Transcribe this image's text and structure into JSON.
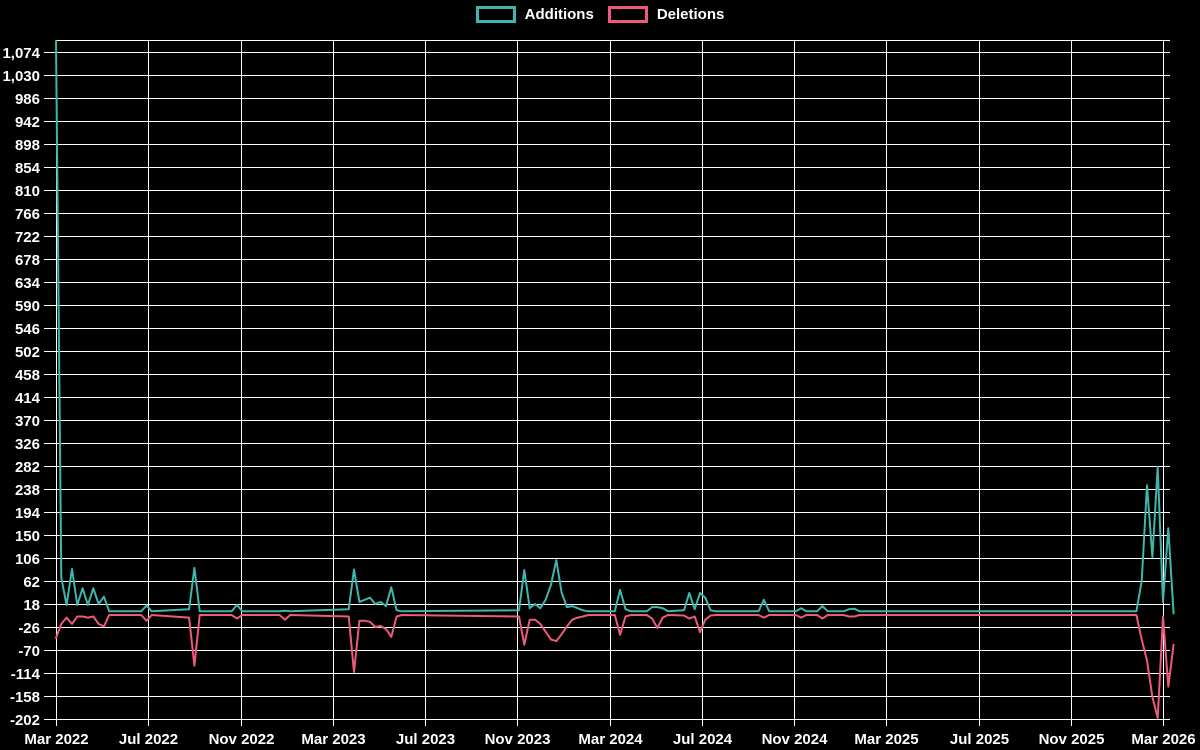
{
  "legend": {
    "items": [
      {
        "label": "Additions",
        "color": "#40b5ac"
      },
      {
        "label": "Deletions",
        "color": "#ee5a79"
      }
    ]
  },
  "chart_data": {
    "type": "line",
    "title": "",
    "xlabel": "",
    "ylabel": "",
    "legend_position": "top-center",
    "plot_background": "#000000",
    "grid": true,
    "grid_color": "#ffffff",
    "x_tick_labels": [
      "Mar 2022",
      "Jul 2022",
      "Nov 2022",
      "Mar 2023",
      "Jul 2023",
      "Nov 2023",
      "Mar 2024",
      "Jul 2024",
      "Nov 2024",
      "Mar 2025",
      "Jul 2025",
      "Nov 2025",
      "Mar 2026"
    ],
    "y_tick_values": [
      1074,
      1030,
      986,
      942,
      898,
      854,
      810,
      766,
      722,
      678,
      634,
      590,
      546,
      502,
      458,
      414,
      370,
      326,
      282,
      238,
      194,
      150,
      106,
      62,
      18,
      -26,
      -70,
      -114,
      -158,
      -202
    ],
    "y_tick_labels": [
      "1,074",
      "1,030",
      "986",
      "942",
      "898",
      "854",
      "810",
      "766",
      "722",
      "678",
      "634",
      "590",
      "546",
      "502",
      "458",
      "414",
      "370",
      "326",
      "282",
      "238",
      "194",
      "150",
      "106",
      "62",
      "18",
      "-26",
      "-70",
      "-114",
      "-158",
      "-202"
    ],
    "ylim": [
      -202,
      1097
    ],
    "xlim_weeks": [
      0,
      208
    ],
    "x_unit": "weeks since Mar 2022",
    "series": [
      {
        "name": "Additions",
        "color": "#40b5ac",
        "points": [
          [
            0,
            1095
          ],
          [
            1,
            68
          ],
          [
            2,
            16
          ],
          [
            3,
            85
          ],
          [
            4,
            16
          ],
          [
            5,
            48
          ],
          [
            6,
            16
          ],
          [
            7,
            48
          ],
          [
            8,
            18
          ],
          [
            9,
            32
          ],
          [
            10,
            4
          ],
          [
            16,
            4
          ],
          [
            17,
            15
          ],
          [
            18,
            4
          ],
          [
            25,
            8
          ],
          [
            26,
            87
          ],
          [
            27,
            4
          ],
          [
            33,
            4
          ],
          [
            34,
            16
          ],
          [
            35,
            4
          ],
          [
            42,
            4
          ],
          [
            43,
            5
          ],
          [
            44,
            4
          ],
          [
            55,
            8
          ],
          [
            56,
            84
          ],
          [
            57,
            22
          ],
          [
            58,
            26
          ],
          [
            59,
            30
          ],
          [
            60,
            18
          ],
          [
            61,
            22
          ],
          [
            62,
            14
          ],
          [
            63,
            50
          ],
          [
            64,
            6
          ],
          [
            65,
            4
          ],
          [
            87,
            6
          ],
          [
            88,
            83
          ],
          [
            89,
            10
          ],
          [
            90,
            18
          ],
          [
            91,
            10
          ],
          [
            92,
            26
          ],
          [
            93,
            55
          ],
          [
            94,
            102
          ],
          [
            95,
            40
          ],
          [
            96,
            12
          ],
          [
            97,
            14
          ],
          [
            98,
            10
          ],
          [
            99,
            6
          ],
          [
            100,
            4
          ],
          [
            105,
            4
          ],
          [
            106,
            45
          ],
          [
            107,
            8
          ],
          [
            108,
            4
          ],
          [
            111,
            4
          ],
          [
            112,
            12
          ],
          [
            113,
            12
          ],
          [
            114,
            10
          ],
          [
            115,
            4
          ],
          [
            118,
            6
          ],
          [
            119,
            39
          ],
          [
            120,
            8
          ],
          [
            121,
            39
          ],
          [
            122,
            30
          ],
          [
            123,
            6
          ],
          [
            124,
            4
          ],
          [
            132,
            4
          ],
          [
            133,
            26
          ],
          [
            134,
            4
          ],
          [
            139,
            4
          ],
          [
            140,
            10
          ],
          [
            141,
            4
          ],
          [
            143,
            4
          ],
          [
            144,
            14
          ],
          [
            145,
            4
          ],
          [
            148,
            4
          ],
          [
            149,
            8
          ],
          [
            150,
            9
          ],
          [
            151,
            4
          ],
          [
            203,
            4
          ],
          [
            204,
            62
          ],
          [
            205,
            245
          ],
          [
            206,
            108
          ],
          [
            207,
            280
          ],
          [
            208,
            22
          ],
          [
            209,
            163
          ],
          [
            210,
            0
          ]
        ]
      },
      {
        "name": "Deletions",
        "color": "#ee5a79",
        "points": [
          [
            0,
            -47
          ],
          [
            1,
            -20
          ],
          [
            2,
            -8
          ],
          [
            3,
            -20
          ],
          [
            4,
            -6
          ],
          [
            5,
            -6
          ],
          [
            6,
            -8
          ],
          [
            7,
            -6
          ],
          [
            8,
            -20
          ],
          [
            9,
            -25
          ],
          [
            10,
            -3
          ],
          [
            16,
            -3
          ],
          [
            17,
            -14
          ],
          [
            18,
            -3
          ],
          [
            25,
            -8
          ],
          [
            26,
            -100
          ],
          [
            27,
            -3
          ],
          [
            33,
            -3
          ],
          [
            34,
            -10
          ],
          [
            35,
            -3
          ],
          [
            42,
            -3
          ],
          [
            43,
            -12
          ],
          [
            44,
            -3
          ],
          [
            55,
            -6
          ],
          [
            56,
            -112
          ],
          [
            57,
            -14
          ],
          [
            58,
            -14
          ],
          [
            59,
            -16
          ],
          [
            60,
            -26
          ],
          [
            61,
            -24
          ],
          [
            62,
            -30
          ],
          [
            63,
            -45
          ],
          [
            64,
            -6
          ],
          [
            65,
            -3
          ],
          [
            87,
            -6
          ],
          [
            88,
            -60
          ],
          [
            89,
            -12
          ],
          [
            90,
            -12
          ],
          [
            91,
            -20
          ],
          [
            92,
            -35
          ],
          [
            93,
            -50
          ],
          [
            94,
            -53
          ],
          [
            95,
            -40
          ],
          [
            96,
            -25
          ],
          [
            97,
            -12
          ],
          [
            98,
            -8
          ],
          [
            99,
            -6
          ],
          [
            100,
            -3
          ],
          [
            105,
            -3
          ],
          [
            106,
            -41
          ],
          [
            107,
            -6
          ],
          [
            108,
            -3
          ],
          [
            111,
            -3
          ],
          [
            112,
            -10
          ],
          [
            113,
            -28
          ],
          [
            114,
            -8
          ],
          [
            115,
            -3
          ],
          [
            118,
            -4
          ],
          [
            119,
            -10
          ],
          [
            120,
            -6
          ],
          [
            121,
            -36
          ],
          [
            122,
            -12
          ],
          [
            123,
            -4
          ],
          [
            124,
            -3
          ],
          [
            132,
            -3
          ],
          [
            133,
            -8
          ],
          [
            134,
            -3
          ],
          [
            139,
            -3
          ],
          [
            140,
            -8
          ],
          [
            141,
            -3
          ],
          [
            143,
            -3
          ],
          [
            144,
            -10
          ],
          [
            145,
            -3
          ],
          [
            148,
            -3
          ],
          [
            149,
            -6
          ],
          [
            150,
            -6
          ],
          [
            151,
            -3
          ],
          [
            203,
            -3
          ],
          [
            204,
            -50
          ],
          [
            205,
            -90
          ],
          [
            206,
            -160
          ],
          [
            207,
            -200
          ],
          [
            208,
            -6
          ],
          [
            209,
            -140
          ],
          [
            210,
            -60
          ]
        ]
      }
    ]
  }
}
